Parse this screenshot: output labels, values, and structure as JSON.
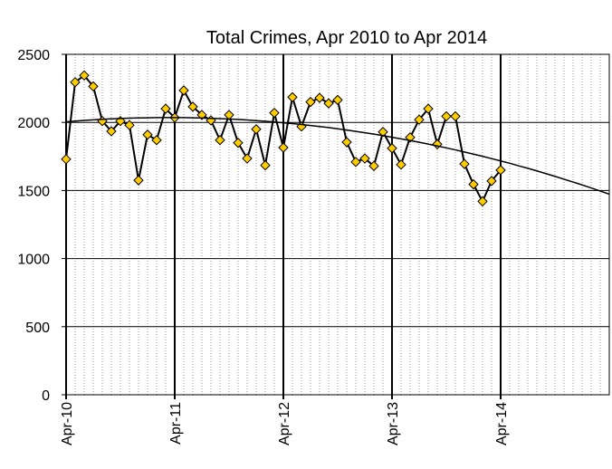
{
  "chart_data": {
    "type": "line",
    "title": "Total Crimes, Apr 2010 to Apr 2014",
    "categories": [
      "Apr-10",
      null,
      null,
      null,
      null,
      null,
      null,
      null,
      null,
      null,
      null,
      null,
      "Apr-11",
      null,
      null,
      null,
      null,
      null,
      null,
      null,
      null,
      null,
      null,
      null,
      "Apr-12",
      null,
      null,
      null,
      null,
      null,
      null,
      null,
      null,
      null,
      null,
      null,
      "Apr-13",
      null,
      null,
      null,
      null,
      null,
      null,
      null,
      null,
      null,
      null,
      null,
      "Apr-14",
      null,
      null,
      null,
      null,
      null,
      null,
      null,
      null,
      null,
      null,
      null,
      null
    ],
    "series": [
      {
        "color": "#000000",
        "marker_color": "#ffcc00",
        "values": [
          1730,
          2295,
          2345,
          2265,
          2010,
          1935,
          2010,
          1980,
          1575,
          1910,
          1870,
          2100,
          2035,
          2235,
          2115,
          2055,
          2015,
          1870,
          2055,
          1850,
          1735,
          1950,
          1685,
          2070,
          1815,
          2185,
          1970,
          2150,
          2180,
          2140,
          2165,
          1855,
          1710,
          1735,
          1680,
          1930,
          1810,
          1690,
          1890,
          2020,
          2100,
          1840,
          2045,
          2045,
          1695,
          1545,
          1420,
          1570,
          1650,
          null,
          null,
          null,
          null,
          null,
          null,
          null,
          null,
          null,
          null,
          null,
          null
        ]
      },
      {
        "color": "#000000",
        "values": [
          2005,
          2010,
          2015,
          2019,
          2023,
          2026,
          2029,
          2031,
          2033,
          2034,
          2035,
          2035,
          2035,
          2035,
          2034,
          2032,
          2030,
          2028,
          2025,
          2022,
          2018,
          2013,
          2009,
          2003,
          1997,
          1991,
          1985,
          1977,
          1970,
          1962,
          1953,
          1944,
          1934,
          1924,
          1914,
          1903,
          1891,
          1879,
          1867,
          1854,
          1841,
          1827,
          1813,
          1798,
          1783,
          1767,
          1751,
          1734,
          1717,
          1700,
          1681,
          1663,
          1644,
          1624,
          1604,
          1583,
          1562,
          1541,
          1519,
          1496,
          1473
        ]
      }
    ],
    "ylim": [
      0,
      2500
    ],
    "yticks": [
      0,
      500,
      1000,
      1500,
      2000,
      2500
    ],
    "grid": true
  }
}
